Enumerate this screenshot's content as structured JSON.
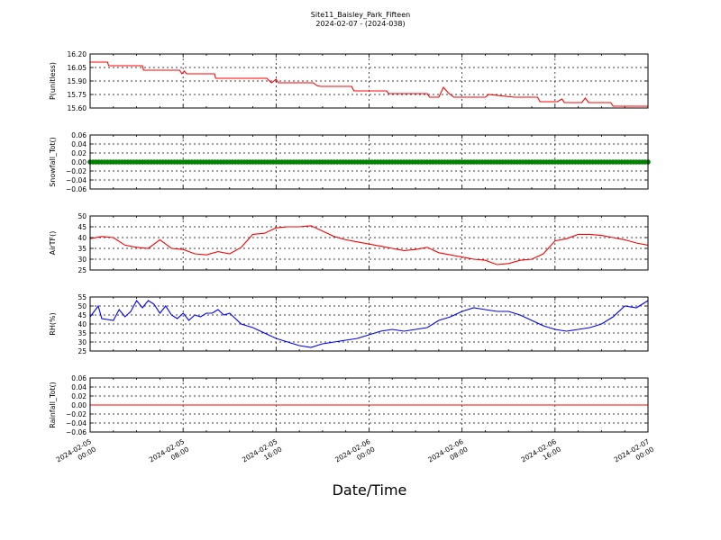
{
  "title": "Site11_Baisley_Park_Fifteen",
  "subtitle": "2024-02-07 - (2024-038)",
  "xlabel": "Date/Time",
  "x_ticks": [
    [
      "2024-02-05",
      "00:00"
    ],
    [
      "2024-02-05",
      "08:00"
    ],
    [
      "2024-02-05",
      "16:00"
    ],
    [
      "2024-02-06",
      "00:00"
    ],
    [
      "2024-02-06",
      "08:00"
    ],
    [
      "2024-02-06",
      "16:00"
    ],
    [
      "2024-02-07",
      "00:00"
    ]
  ],
  "chart_data": [
    {
      "type": "line",
      "ylabel": "P(unitless)",
      "ylim": [
        15.6,
        16.2
      ],
      "yticks": [
        "15.60",
        "15.75",
        "15.90",
        "16.05",
        "16.20"
      ],
      "grid": true,
      "color": "#ff0000",
      "x_hours": [
        0,
        1.5,
        1.6,
        4.5,
        4.6,
        7.7,
        7.9,
        8.1,
        8.3,
        10.7,
        10.8,
        15.2,
        15.6,
        16.0,
        16.2,
        19.2,
        19.5,
        19.8,
        22.5,
        22.7,
        24.0,
        25.5,
        25.7,
        29.0,
        29.2,
        30.0,
        30.4,
        30.8,
        31.3,
        31.6,
        33.0,
        34.0,
        34.3,
        36.5,
        36.8,
        38.5,
        38.7,
        40.2,
        40.6,
        40.8,
        41.0,
        42.3,
        42.6,
        42.9,
        44.8,
        45.0,
        48.0
      ],
      "values": [
        16.11,
        16.11,
        16.07,
        16.07,
        16.02,
        16.02,
        15.98,
        16.01,
        15.98,
        15.98,
        15.93,
        15.93,
        15.88,
        15.92,
        15.88,
        15.88,
        15.85,
        15.84,
        15.84,
        15.79,
        15.79,
        15.79,
        15.76,
        15.76,
        15.72,
        15.72,
        15.83,
        15.77,
        15.72,
        15.72,
        15.72,
        15.72,
        15.75,
        15.72,
        15.72,
        15.72,
        15.67,
        15.67,
        15.7,
        15.66,
        15.66,
        15.66,
        15.71,
        15.66,
        15.66,
        15.62,
        15.62
      ]
    },
    {
      "type": "scatter",
      "ylabel": "Snowfall_Tot()",
      "ylim": [
        -0.06,
        0.06
      ],
      "yticks": [
        "−0.06",
        "−0.04",
        "−0.02",
        "0.00",
        "0.02",
        "0.04",
        "0.06"
      ],
      "grid": true,
      "color": "#008000",
      "x_hours_range": [
        0,
        48
      ],
      "x_step_hours": 0.25,
      "constant_value": 0.0
    },
    {
      "type": "line",
      "ylabel": "AirTF()",
      "ylim": [
        25,
        50
      ],
      "yticks": [
        "25",
        "30",
        "35",
        "40",
        "45",
        "50"
      ],
      "grid": true,
      "color": "#ff0000",
      "x_hours": [
        0,
        1,
        2,
        3,
        4,
        5,
        6,
        7,
        8,
        9,
        10,
        11,
        12,
        13,
        14,
        15,
        16,
        17,
        18,
        19,
        20,
        21,
        22,
        23,
        24,
        25,
        26,
        27,
        28,
        29,
        30,
        31,
        32,
        33,
        34,
        35,
        36,
        37,
        38,
        39,
        40,
        41,
        42,
        43,
        44,
        45,
        46,
        47,
        48
      ],
      "values": [
        39.5,
        40.5,
        40.0,
        36.5,
        35.5,
        35.0,
        39.0,
        35.0,
        34.5,
        32.5,
        32.0,
        33.5,
        32.5,
        35.5,
        41.5,
        42.0,
        44.5,
        45.0,
        45.0,
        45.5,
        43.0,
        40.5,
        39.0,
        38.0,
        37.0,
        36.0,
        35.0,
        34.0,
        34.5,
        35.5,
        33.0,
        32.0,
        31.0,
        30.0,
        29.5,
        27.5,
        28.0,
        29.5,
        30.0,
        32.5,
        38.5,
        39.5,
        41.5,
        41.5,
        41.0,
        40.0,
        39.0,
        37.5,
        36.5
      ]
    },
    {
      "type": "line",
      "ylabel": "RH(%)",
      "ylim": [
        25,
        55
      ],
      "yticks": [
        "25",
        "30",
        "35",
        "40",
        "45",
        "50",
        "55"
      ],
      "grid": true,
      "color": "#0000ff",
      "x_hours": [
        0,
        0.7,
        1.0,
        2.0,
        2.5,
        3.0,
        3.5,
        4.0,
        4.5,
        5.0,
        5.5,
        6.0,
        6.5,
        7.0,
        7.5,
        8.0,
        8.5,
        9.0,
        9.5,
        10.0,
        10.5,
        11.0,
        11.5,
        12.0,
        13.0,
        14.0,
        15.0,
        16.0,
        17.0,
        18.0,
        19.0,
        20.0,
        21.0,
        22.0,
        23.0,
        24.0,
        25.0,
        26.0,
        27.0,
        28.0,
        29.0,
        30.0,
        31.0,
        32.0,
        33.0,
        34.0,
        35.0,
        36.0,
        37.0,
        38.0,
        39.0,
        40.0,
        41.0,
        42.0,
        43.0,
        44.0,
        45.0,
        46.0,
        47.0,
        48.0
      ],
      "values": [
        44,
        50,
        43,
        42,
        48,
        44,
        47,
        53,
        49,
        53,
        51,
        46,
        50,
        45,
        43,
        46,
        42,
        45,
        44,
        46,
        46,
        48,
        45,
        46,
        40,
        38,
        35,
        32,
        30,
        28,
        27,
        29,
        30,
        31,
        32,
        34,
        36,
        37,
        36,
        37,
        38,
        42,
        44,
        47,
        49,
        48,
        47,
        47,
        45,
        42,
        39,
        37,
        36,
        37,
        38,
        40,
        44,
        50,
        49,
        53
      ]
    },
    {
      "type": "line",
      "ylabel": "Rainfall_Tot()",
      "ylim": [
        -0.06,
        0.06
      ],
      "yticks": [
        "−0.06",
        "−0.04",
        "−0.02",
        "0.00",
        "0.02",
        "0.04",
        "0.06"
      ],
      "grid": true,
      "color": "#ff0000",
      "x_hours": [
        0,
        48
      ],
      "values": [
        0.0,
        0.0
      ]
    }
  ]
}
